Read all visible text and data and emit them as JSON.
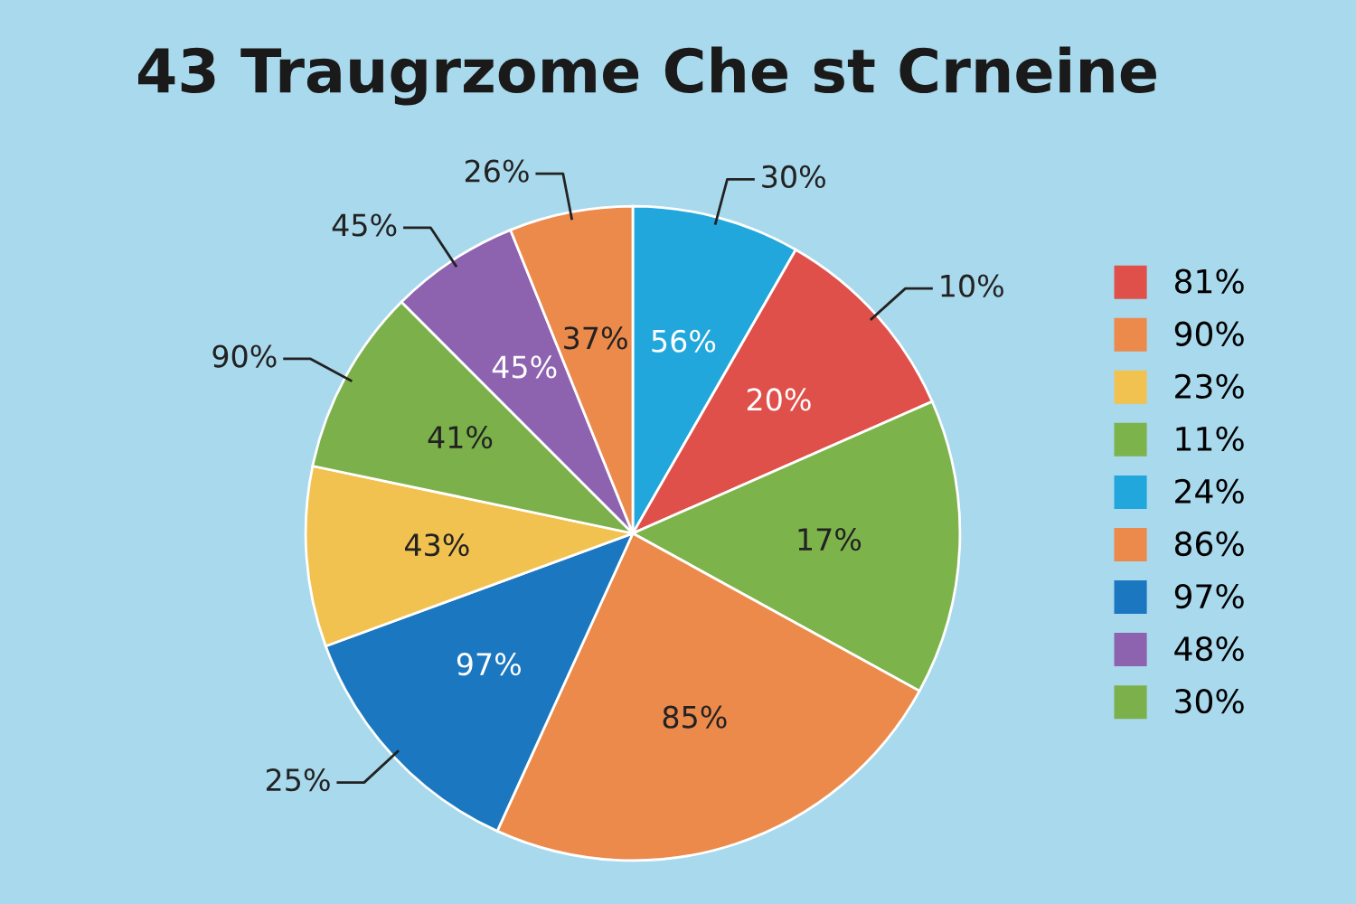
{
  "chart_data": {
    "type": "pie",
    "title": "43 Traugrzome Che st Crneine",
    "categories": [
      "24%",
      "81%",
      "11%",
      "90%",
      "97%",
      "23%",
      "30%",
      "48%",
      "86%"
    ],
    "values": [
      8.3,
      10.1,
      14.6,
      23.8,
      12.6,
      8.9,
      9.2,
      6.4,
      6.1
    ],
    "colors": [
      "#22a7dc",
      "#e0504a",
      "#7db34b",
      "#ec8a4c",
      "#1a77c0",
      "#f2c250",
      "#7cb04b",
      "#8d63b0",
      "#ec8a4c"
    ],
    "annotations": [
      "56%",
      "20%",
      "17%",
      "85%",
      "97%",
      "43%",
      "41%",
      "45%",
      "37%",
      "30%",
      "10%",
      "25%",
      "90%",
      "45%",
      "26%"
    ],
    "legend": "right"
  }
}
